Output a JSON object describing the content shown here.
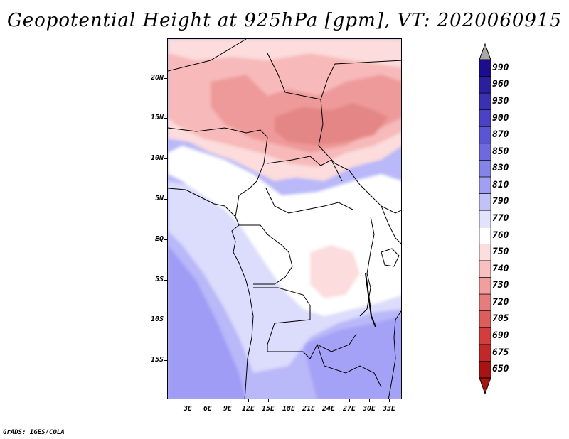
{
  "title": "Geopotential Height at 925hPa [gpm], VT: 2020060915",
  "footer": "GrADS: IGES/COLA",
  "colors": {
    "ocean_south": "#9e9cf5",
    "ocean_mid": "#b9b8f8",
    "light_blue": "#dcdcfc",
    "white": "#ffffff",
    "pink_light": "#fcdcdc",
    "pink": "#f7b9b9",
    "salmon": "#ef9a9a",
    "deep_salmon": "#e48686",
    "border": "#000000"
  },
  "map": {
    "lon_labels": [
      "3E",
      "6E",
      "9E",
      "12E",
      "15E",
      "18E",
      "21E",
      "24E",
      "27E",
      "30E",
      "33E"
    ],
    "lat_labels": [
      "20N",
      "15N",
      "10N",
      "5N",
      "EQ",
      "5S",
      "10S",
      "15S"
    ]
  },
  "colorbar": {
    "labels": [
      "990",
      "960",
      "930",
      "900",
      "870",
      "850",
      "830",
      "810",
      "790",
      "770",
      "760",
      "750",
      "740",
      "730",
      "720",
      "705",
      "690",
      "675",
      "650"
    ],
    "colors": [
      "#1c0c8e",
      "#2b1fa0",
      "#3a30b2",
      "#4a42c4",
      "#5a55d2",
      "#6e6ade",
      "#8483e8",
      "#a09ff1",
      "#c2c1f8",
      "#e2e2fc",
      "#ffffff",
      "#fcdede",
      "#f8c0c0",
      "#f09e9e",
      "#e67d7d",
      "#dd5c5c",
      "#d23e3e",
      "#c22828",
      "#a81414"
    ]
  }
}
